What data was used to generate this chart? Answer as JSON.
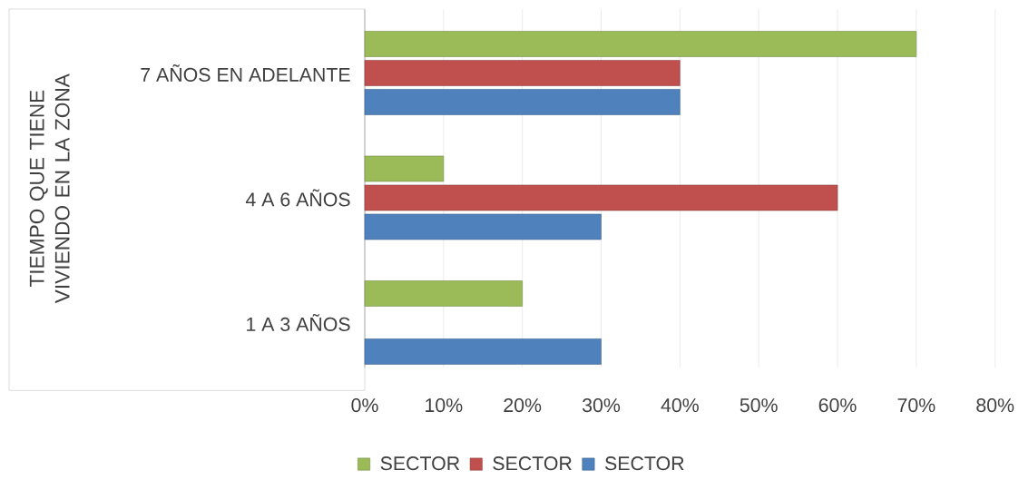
{
  "chart_data": {
    "type": "bar",
    "orientation": "horizontal",
    "ylabel": "TIEMPO QUE TIENE VIVIENDO EN LA ZONA",
    "categories": [
      "7 AÑOS EN ADELANTE",
      "4 A 6 AÑOS",
      "1 A 3 AÑOS"
    ],
    "series": [
      {
        "name": "SECTOR",
        "color": "#4f81bd",
        "values": [
          40,
          30,
          30
        ]
      },
      {
        "name": "SECTOR",
        "color": "#c0504d",
        "values": [
          40,
          60,
          null
        ]
      },
      {
        "name": "SECTOR",
        "color": "#9bbb59",
        "values": [
          70,
          10,
          20
        ]
      }
    ],
    "xlim": [
      0,
      80
    ],
    "xticks": [
      {
        "value": 0,
        "label": "0%"
      },
      {
        "value": 10,
        "label": "10%"
      },
      {
        "value": 20,
        "label": "20%"
      },
      {
        "value": 30,
        "label": "30%"
      },
      {
        "value": 40,
        "label": "40%"
      },
      {
        "value": 50,
        "label": "50%"
      },
      {
        "value": 60,
        "label": "60%"
      },
      {
        "value": 70,
        "label": "70%"
      },
      {
        "value": 80,
        "label": "80%"
      }
    ],
    "grid": "x",
    "legend": "bottom"
  }
}
